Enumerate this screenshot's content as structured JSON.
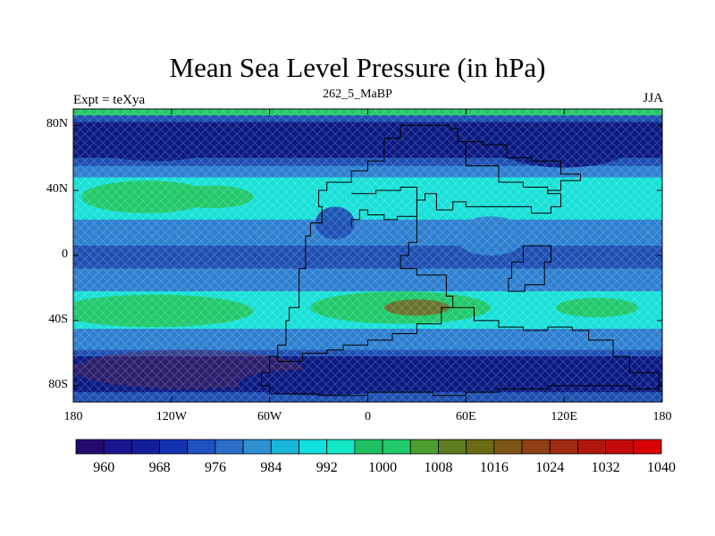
{
  "title": "Mean Sea Level Pressure (in hPa)",
  "subtitle": "262_5_MaBP",
  "left_label": "Expt = teXya",
  "right_label": "JJA",
  "map": {
    "lon_range": [
      -180,
      180
    ],
    "lat_range": [
      -90,
      90
    ],
    "y_ticks": [
      {
        "label": "80N",
        "lat": 80
      },
      {
        "label": "40N",
        "lat": 40
      },
      {
        "label": "0",
        "lat": 0
      },
      {
        "label": "40S",
        "lat": -40
      },
      {
        "label": "80S",
        "lat": -80
      }
    ],
    "x_ticks": [
      {
        "label": "180",
        "lon": -180
      },
      {
        "label": "120W",
        "lon": -120
      },
      {
        "label": "60W",
        "lon": -60
      },
      {
        "label": "0",
        "lon": 0
      },
      {
        "label": "60E",
        "lon": 60
      },
      {
        "label": "120E",
        "lon": 120
      },
      {
        "label": "180",
        "lon": 180
      }
    ],
    "colors": {
      "deep": "#0b1a82",
      "blue": "#1d4fb3",
      "mid": "#2e7fd0",
      "cyan": "#18e0d8",
      "green": "#22c766",
      "olive": "#6a6f2a",
      "brown": "#7a4f26",
      "dark_red": "#6b2a4a"
    }
  },
  "colorbar": {
    "colors": [
      "#240a6e",
      "#1b1490",
      "#141d9c",
      "#1433b0",
      "#1f52c0",
      "#2b6ec8",
      "#2e90d2",
      "#18b6d8",
      "#12dfe0",
      "#13e8c8",
      "#20c062",
      "#1fcb6a",
      "#4a9f2e",
      "#5e7d1e",
      "#6b6b14",
      "#7e5614",
      "#904014",
      "#a02a10",
      "#b0160c",
      "#c40a08",
      "#d80404"
    ],
    "labels": [
      "960",
      "968",
      "976",
      "984",
      "992",
      "1000",
      "1008",
      "1016",
      "1024",
      "1032",
      "1040"
    ]
  }
}
